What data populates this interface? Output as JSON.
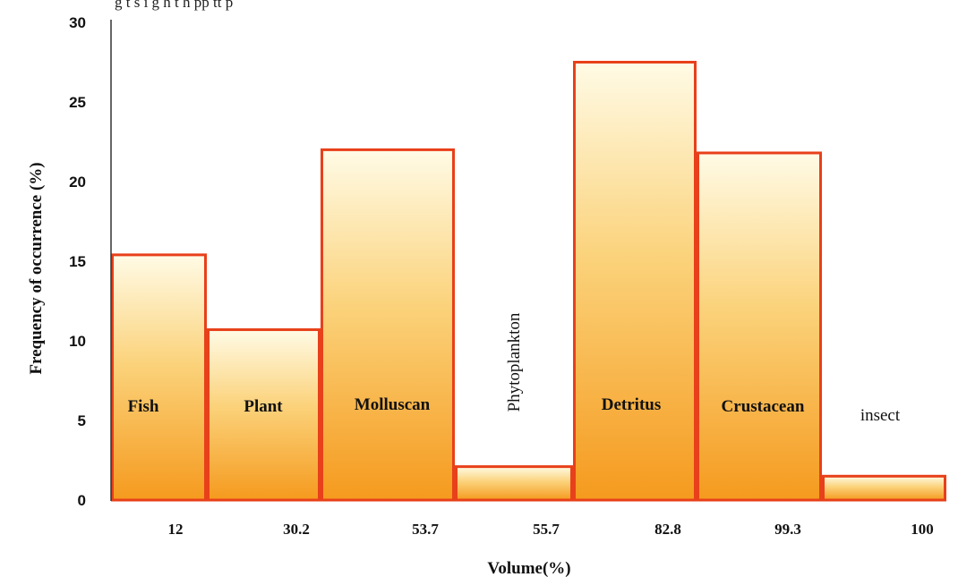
{
  "top_fragment": "g t   s i g  h   t  h   pp   tt  p   ",
  "chart_data": {
    "type": "bar",
    "xlabel": "Volume(%)",
    "ylabel": "Frequency of occurrence (%)",
    "ylim": [
      0,
      30
    ],
    "yticks": [
      0,
      5,
      10,
      15,
      20,
      25,
      30
    ],
    "categories": [
      "Fish",
      "Plant",
      "Molluscan",
      "Phytoplankton",
      "Detritus",
      "Crustacean",
      "insect"
    ],
    "x_tick_labels": [
      "12",
      "30.2",
      "53.7",
      "55.7",
      "82.8",
      "99.3",
      "100"
    ],
    "values": [
      15.4,
      10.7,
      22.0,
      2.1,
      27.5,
      21.8,
      1.5
    ],
    "bar_colors": {
      "top": "#fffbe6",
      "mid": "#fbd27a",
      "bottom": "#f59a1e",
      "edge": "#e8401a"
    }
  }
}
